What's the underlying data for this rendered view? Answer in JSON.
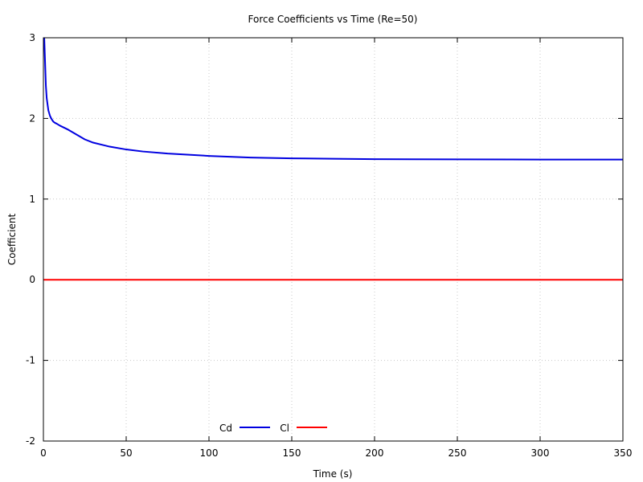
{
  "chart_data": {
    "type": "line",
    "title": "Force Coefficients vs Time (Re=50)",
    "xlabel": "Time (s)",
    "ylabel": "Coefficient",
    "xlim": [
      0,
      350
    ],
    "ylim": [
      -2,
      3
    ],
    "xticks": [
      0,
      50,
      100,
      150,
      200,
      250,
      300,
      350
    ],
    "yticks": [
      -2,
      -1,
      0,
      1,
      2,
      3
    ],
    "grid": true,
    "legend_position": "bottom-center",
    "series": [
      {
        "name": "Cd",
        "color": "#0000e0",
        "x": [
          0.5,
          1,
          1.5,
          2,
          3,
          4,
          5,
          6,
          7,
          8,
          10,
          12,
          15,
          20,
          25,
          30,
          40,
          50,
          60,
          75,
          100,
          125,
          150,
          175,
          200,
          250,
          300,
          350
        ],
        "y": [
          3.0,
          2.7,
          2.4,
          2.25,
          2.1,
          2.03,
          1.99,
          1.96,
          1.945,
          1.935,
          1.91,
          1.89,
          1.86,
          1.8,
          1.74,
          1.7,
          1.65,
          1.615,
          1.59,
          1.565,
          1.535,
          1.515,
          1.505,
          1.5,
          1.495,
          1.492,
          1.49,
          1.49
        ]
      },
      {
        "name": "Cl",
        "color": "#ff0000",
        "x": [
          0,
          350
        ],
        "y": [
          0,
          0
        ]
      }
    ]
  }
}
